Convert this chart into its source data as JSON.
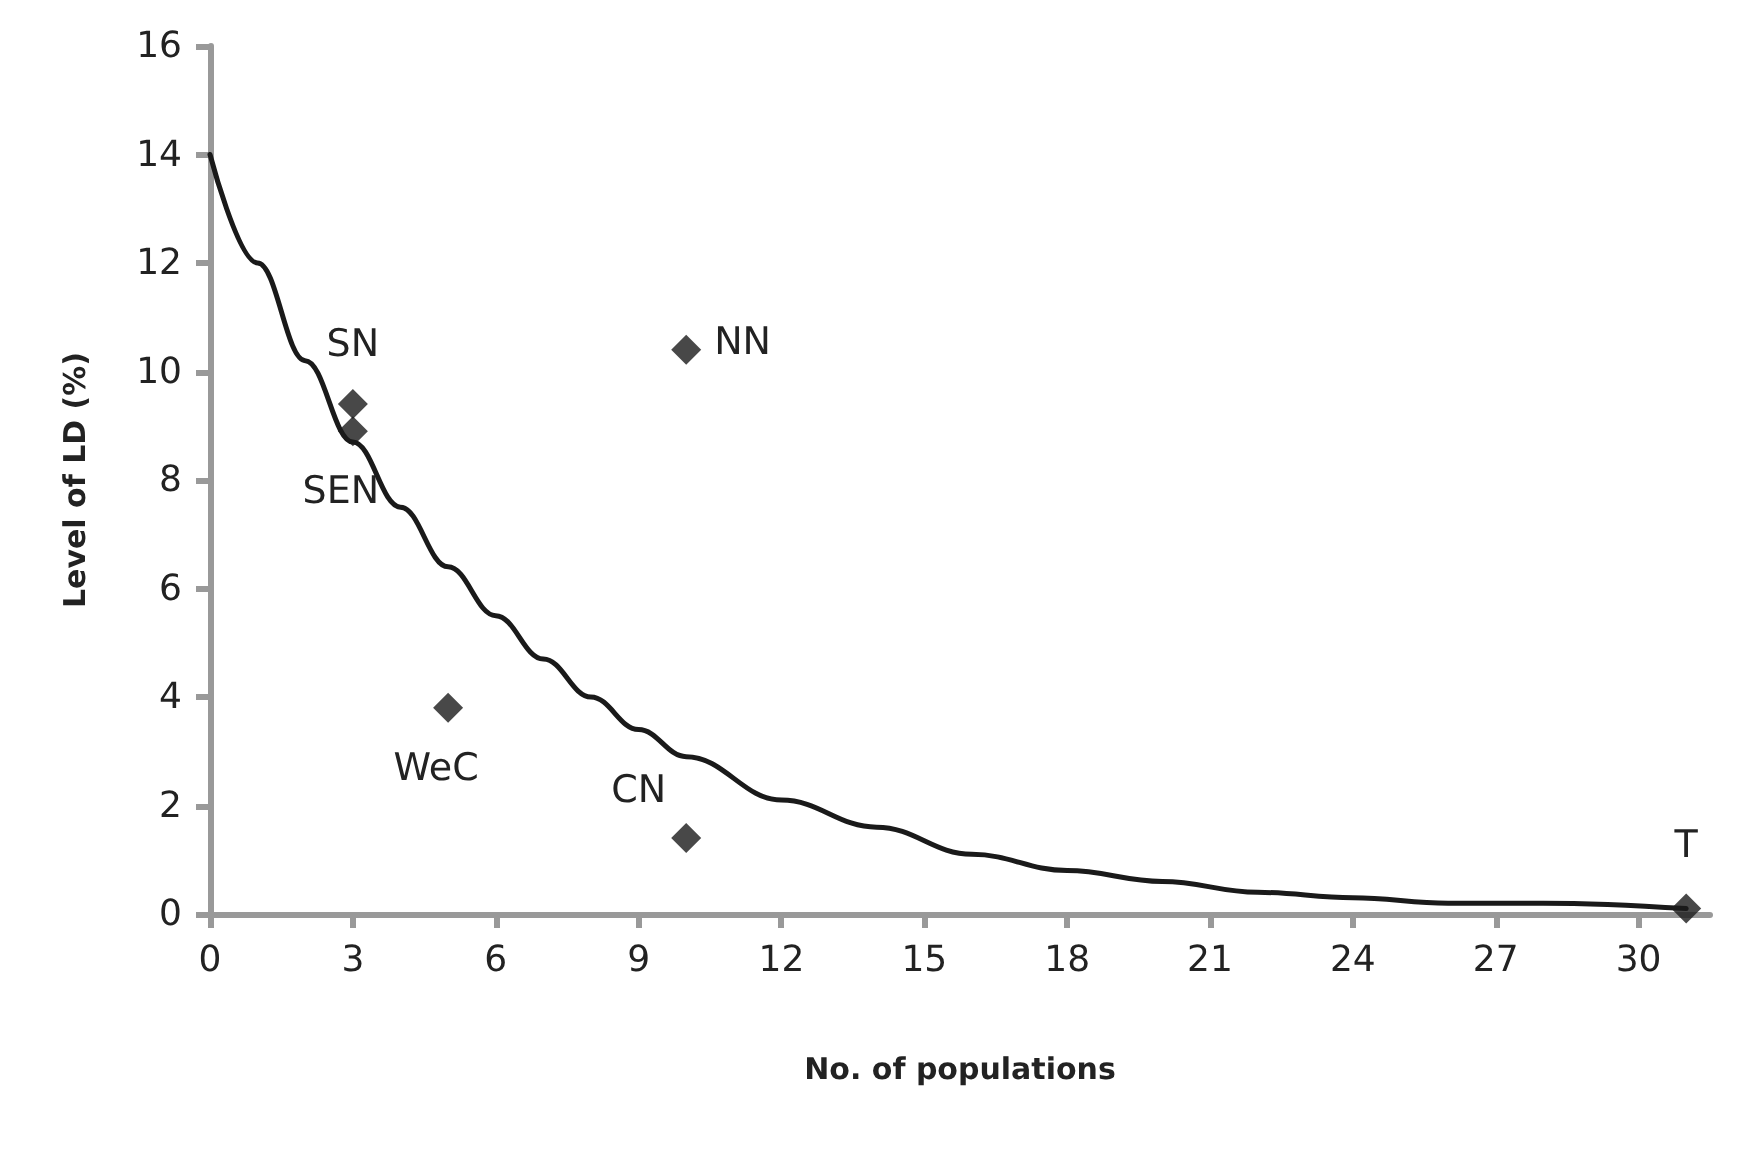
{
  "chart_data": {
    "type": "scatter",
    "xlabel": "No. of populations",
    "ylabel": "Level of LD (%)",
    "xlim": [
      0,
      31.5
    ],
    "xticks": [
      0,
      3,
      6,
      9,
      12,
      15,
      18,
      21,
      24,
      27,
      30
    ],
    "ylim": [
      0,
      16
    ],
    "yticks": [
      0,
      2,
      4,
      6,
      8,
      10,
      12,
      14,
      16
    ],
    "grid": false,
    "marker": "diamond",
    "series": [
      {
        "color": "#1a1a1a",
        "x": [
          3,
          3,
          10,
          5,
          10,
          31
        ],
        "values": [
          9.4,
          8.9,
          10.4,
          3.8,
          1.4,
          0.1
        ]
      },
      {
        "type": "line",
        "color": "#1a1a1a",
        "marker": "none",
        "line_style": "solid",
        "x": [
          0,
          1,
          2,
          3,
          4,
          5,
          6,
          7,
          8,
          9,
          10,
          12,
          14,
          16,
          18,
          20,
          22,
          24,
          26,
          28,
          31
        ],
        "values": [
          14,
          12,
          10.2,
          8.7,
          7.5,
          6.4,
          5.5,
          4.7,
          4,
          3.4,
          2.9,
          2.1,
          1.6,
          1.1,
          0.8,
          0.6,
          0.4,
          0.3,
          0.2,
          0.2,
          0.1
        ]
      }
    ],
    "annotations": [
      {
        "text": "SN",
        "x": 3,
        "y": 9.4
      },
      {
        "text": "SEN",
        "x": 3,
        "y": 8.9
      },
      {
        "text": "NN",
        "x": 10,
        "y": 10.4
      },
      {
        "text": "WeC",
        "x": 5,
        "y": 3.8
      },
      {
        "text": "CN",
        "x": 10,
        "y": 1.4
      },
      {
        "text": "T",
        "x": 31,
        "y": 0.1
      }
    ]
  }
}
